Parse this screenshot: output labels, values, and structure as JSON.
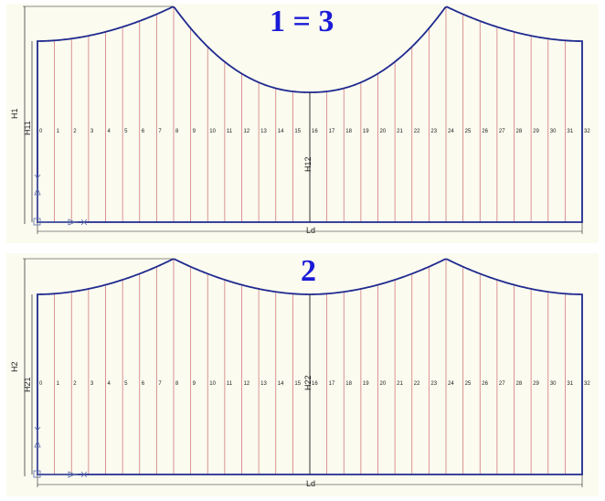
{
  "colors": {
    "outline": "#1f2a8f",
    "strip": "#d27a7a",
    "dimension": "#222222",
    "title": "#1a1ad8",
    "background": "#fbfbf0"
  },
  "panels": [
    {
      "title": "1 = 3",
      "dimensions": {
        "total_height": "H1",
        "side_height": "H11",
        "middle_height": "H12",
        "width": "Ld"
      },
      "strip_labels": [
        "0",
        "1",
        "2",
        "3",
        "4",
        "5",
        "6",
        "7",
        "8",
        "9",
        "10",
        "11",
        "12",
        "13",
        "14",
        "15",
        "16",
        "17",
        "18",
        "19",
        "20",
        "21",
        "22",
        "23",
        "24",
        "25",
        "26",
        "27",
        "28",
        "29",
        "30",
        "31",
        "32"
      ]
    },
    {
      "title": "2",
      "dimensions": {
        "total_height": "H2",
        "side_height": "H21",
        "middle_height": "H22",
        "width": "Ld"
      },
      "strip_labels": [
        "0",
        "1",
        "2",
        "3",
        "4",
        "5",
        "6",
        "7",
        "8",
        "9",
        "10",
        "11",
        "12",
        "13",
        "14",
        "15",
        "16",
        "17",
        "18",
        "19",
        "20",
        "21",
        "22",
        "23",
        "24",
        "25",
        "26",
        "27",
        "28",
        "29",
        "30",
        "31",
        "32"
      ]
    }
  ]
}
